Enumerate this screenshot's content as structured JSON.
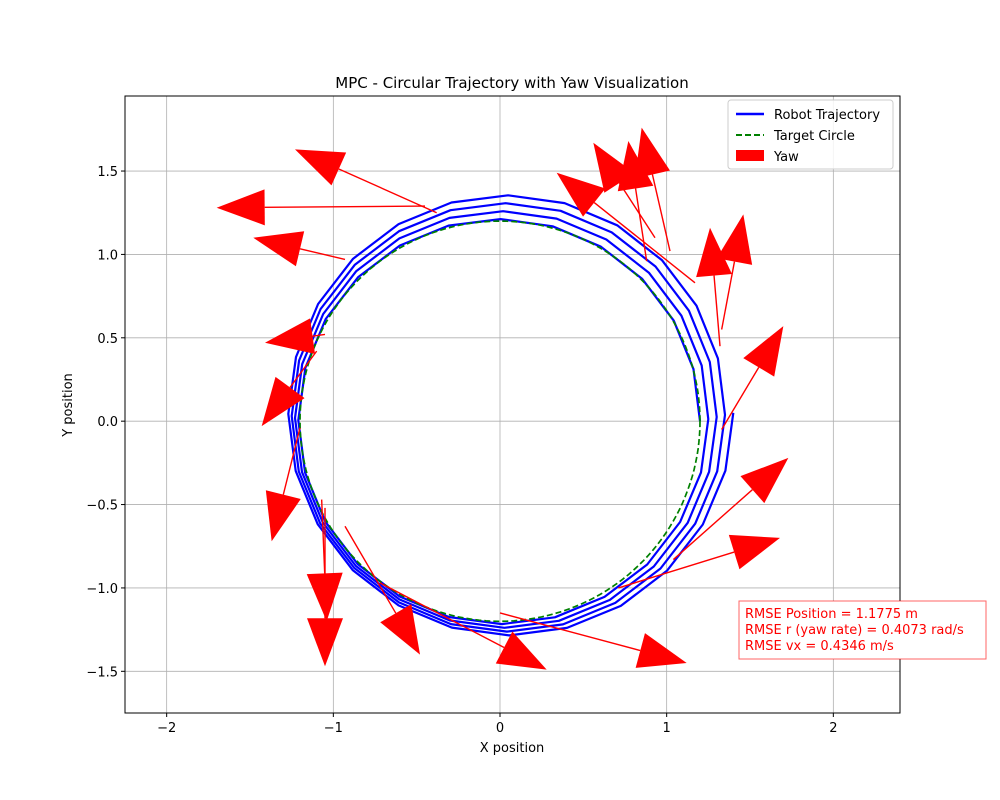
{
  "chart_data": {
    "type": "line",
    "title": "MPC - Circular Trajectory with Yaw Visualization",
    "xlabel": "X position",
    "ylabel": "Y position",
    "xlim": [
      -2.25,
      2.4
    ],
    "ylim": [
      -1.75,
      1.95
    ],
    "xticks": [
      -2,
      -1,
      0,
      1,
      2
    ],
    "xtick_labels": [
      "−2",
      "−1",
      "0",
      "1",
      "2"
    ],
    "yticks": [
      -1.5,
      -1.0,
      -0.5,
      0.0,
      0.5,
      1.0,
      1.5
    ],
    "ytick_labels": [
      "−1.5",
      "−1.0",
      "−0.5",
      "0.0",
      "0.5",
      "1.0",
      "1.5"
    ],
    "grid": true,
    "legend_position": "top-right",
    "series": [
      {
        "name": "Robot Trajectory",
        "color": "#0000ff",
        "style": "solid",
        "spiral": {
          "start_radius": 1.2,
          "end_radius": 1.34,
          "center_start": [
            0.0,
            0.0
          ],
          "center_end": [
            0.06,
            0.05
          ],
          "turns": 4.0
        }
      },
      {
        "name": "Target Circle",
        "color": "#008000",
        "style": "dashed",
        "circle": {
          "center": [
            0,
            0
          ],
          "radius": 1.2
        }
      },
      {
        "name": "Yaw",
        "color": "#ff0000",
        "style": "arrows",
        "arrows": [
          {
            "x": -0.45,
            "y": 1.29,
            "dx": -1.25,
            "dy": -0.01
          },
          {
            "x": -0.93,
            "y": 0.97,
            "dx": -0.55,
            "dy": 0.13
          },
          {
            "x": -0.38,
            "y": 1.25,
            "dx": -0.85,
            "dy": 0.38
          },
          {
            "x": 1.17,
            "y": 0.83,
            "dx": -0.83,
            "dy": 0.66
          },
          {
            "x": 0.93,
            "y": 1.1,
            "dx": -0.37,
            "dy": 0.57
          },
          {
            "x": 1.02,
            "y": 1.02,
            "dx": -0.17,
            "dy": 0.74
          },
          {
            "x": 1.33,
            "y": 0.55,
            "dx": 0.13,
            "dy": 0.69
          },
          {
            "x": 1.32,
            "y": 0.45,
            "dx": -0.06,
            "dy": 0.71
          },
          {
            "x": 0.88,
            "y": 0.96,
            "dx": -0.11,
            "dy": 0.72
          },
          {
            "x": 1.33,
            "y": -0.05,
            "dx": 0.37,
            "dy": 0.62
          },
          {
            "x": 1.04,
            "y": -0.83,
            "dx": 0.69,
            "dy": 0.61
          },
          {
            "x": 0.71,
            "y": -1.0,
            "dx": 0.97,
            "dy": 0.3
          },
          {
            "x": 0.0,
            "y": -1.15,
            "dx": 1.12,
            "dy": -0.3
          },
          {
            "x": -0.72,
            "y": -0.97,
            "dx": 1.0,
            "dy": -0.52
          },
          {
            "x": -0.93,
            "y": -0.63,
            "dx": 0.45,
            "dy": -0.77
          },
          {
            "x": -1.05,
            "y": -0.52,
            "dx": 0.0,
            "dy": -0.95
          },
          {
            "x": -1.07,
            "y": -0.47,
            "dx": 0.03,
            "dy": -0.73
          },
          {
            "x": -1.2,
            "y": -0.04,
            "dx": -0.17,
            "dy": -0.68
          },
          {
            "x": -1.1,
            "y": 0.42,
            "dx": -0.33,
            "dy": -0.45
          },
          {
            "x": -1.05,
            "y": 0.52,
            "dx": -0.36,
            "dy": -0.05
          }
        ]
      }
    ],
    "annotation_lines": [
      "RMSE Position = 1.1775 m",
      "RMSE r (yaw rate) = 0.4073 rad/s",
      "RMSE vx = 0.4346 m/s"
    ]
  }
}
